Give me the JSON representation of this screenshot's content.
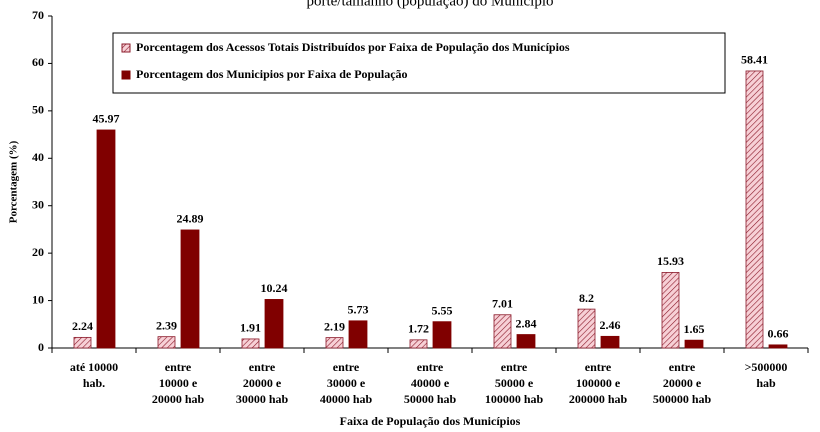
{
  "chart_data": {
    "type": "bar",
    "title": "porte/tamanho (população) do Município",
    "xlabel": "Faixa de População dos Municípios",
    "ylabel": "Porcentagem (%)",
    "categories": [
      [
        "até 10000",
        "hab."
      ],
      [
        "entre",
        "10000 e",
        "20000 hab"
      ],
      [
        "entre",
        "20000 e",
        "30000 hab"
      ],
      [
        "entre",
        "30000 e",
        "40000 hab"
      ],
      [
        "entre",
        "40000 e",
        "50000 hab"
      ],
      [
        "entre",
        "50000 e",
        "100000 hab"
      ],
      [
        "entre",
        "100000 e",
        "200000 hab"
      ],
      [
        "entre",
        "20000 e",
        "500000 hab"
      ],
      [
        ">500000",
        "hab"
      ]
    ],
    "series": [
      {
        "name": "Porcentagem dos Acessos Totais Distribuídos por Faixa de População dos Municípios",
        "color": "#8b1a2a",
        "hatch": true,
        "values": [
          2.24,
          2.39,
          1.91,
          2.19,
          1.72,
          7.01,
          8.2,
          15.93,
          58.41
        ]
      },
      {
        "name": "Porcentagem dos Municipios por Faixa de População",
        "color": "#800000",
        "hatch": false,
        "values": [
          45.97,
          24.89,
          10.24,
          5.73,
          5.55,
          2.84,
          2.46,
          1.65,
          0.66
        ]
      }
    ],
    "ylim": [
      0,
      70
    ],
    "yticks": [
      0,
      10,
      20,
      30,
      40,
      50,
      60,
      70
    ],
    "grid": false
  }
}
